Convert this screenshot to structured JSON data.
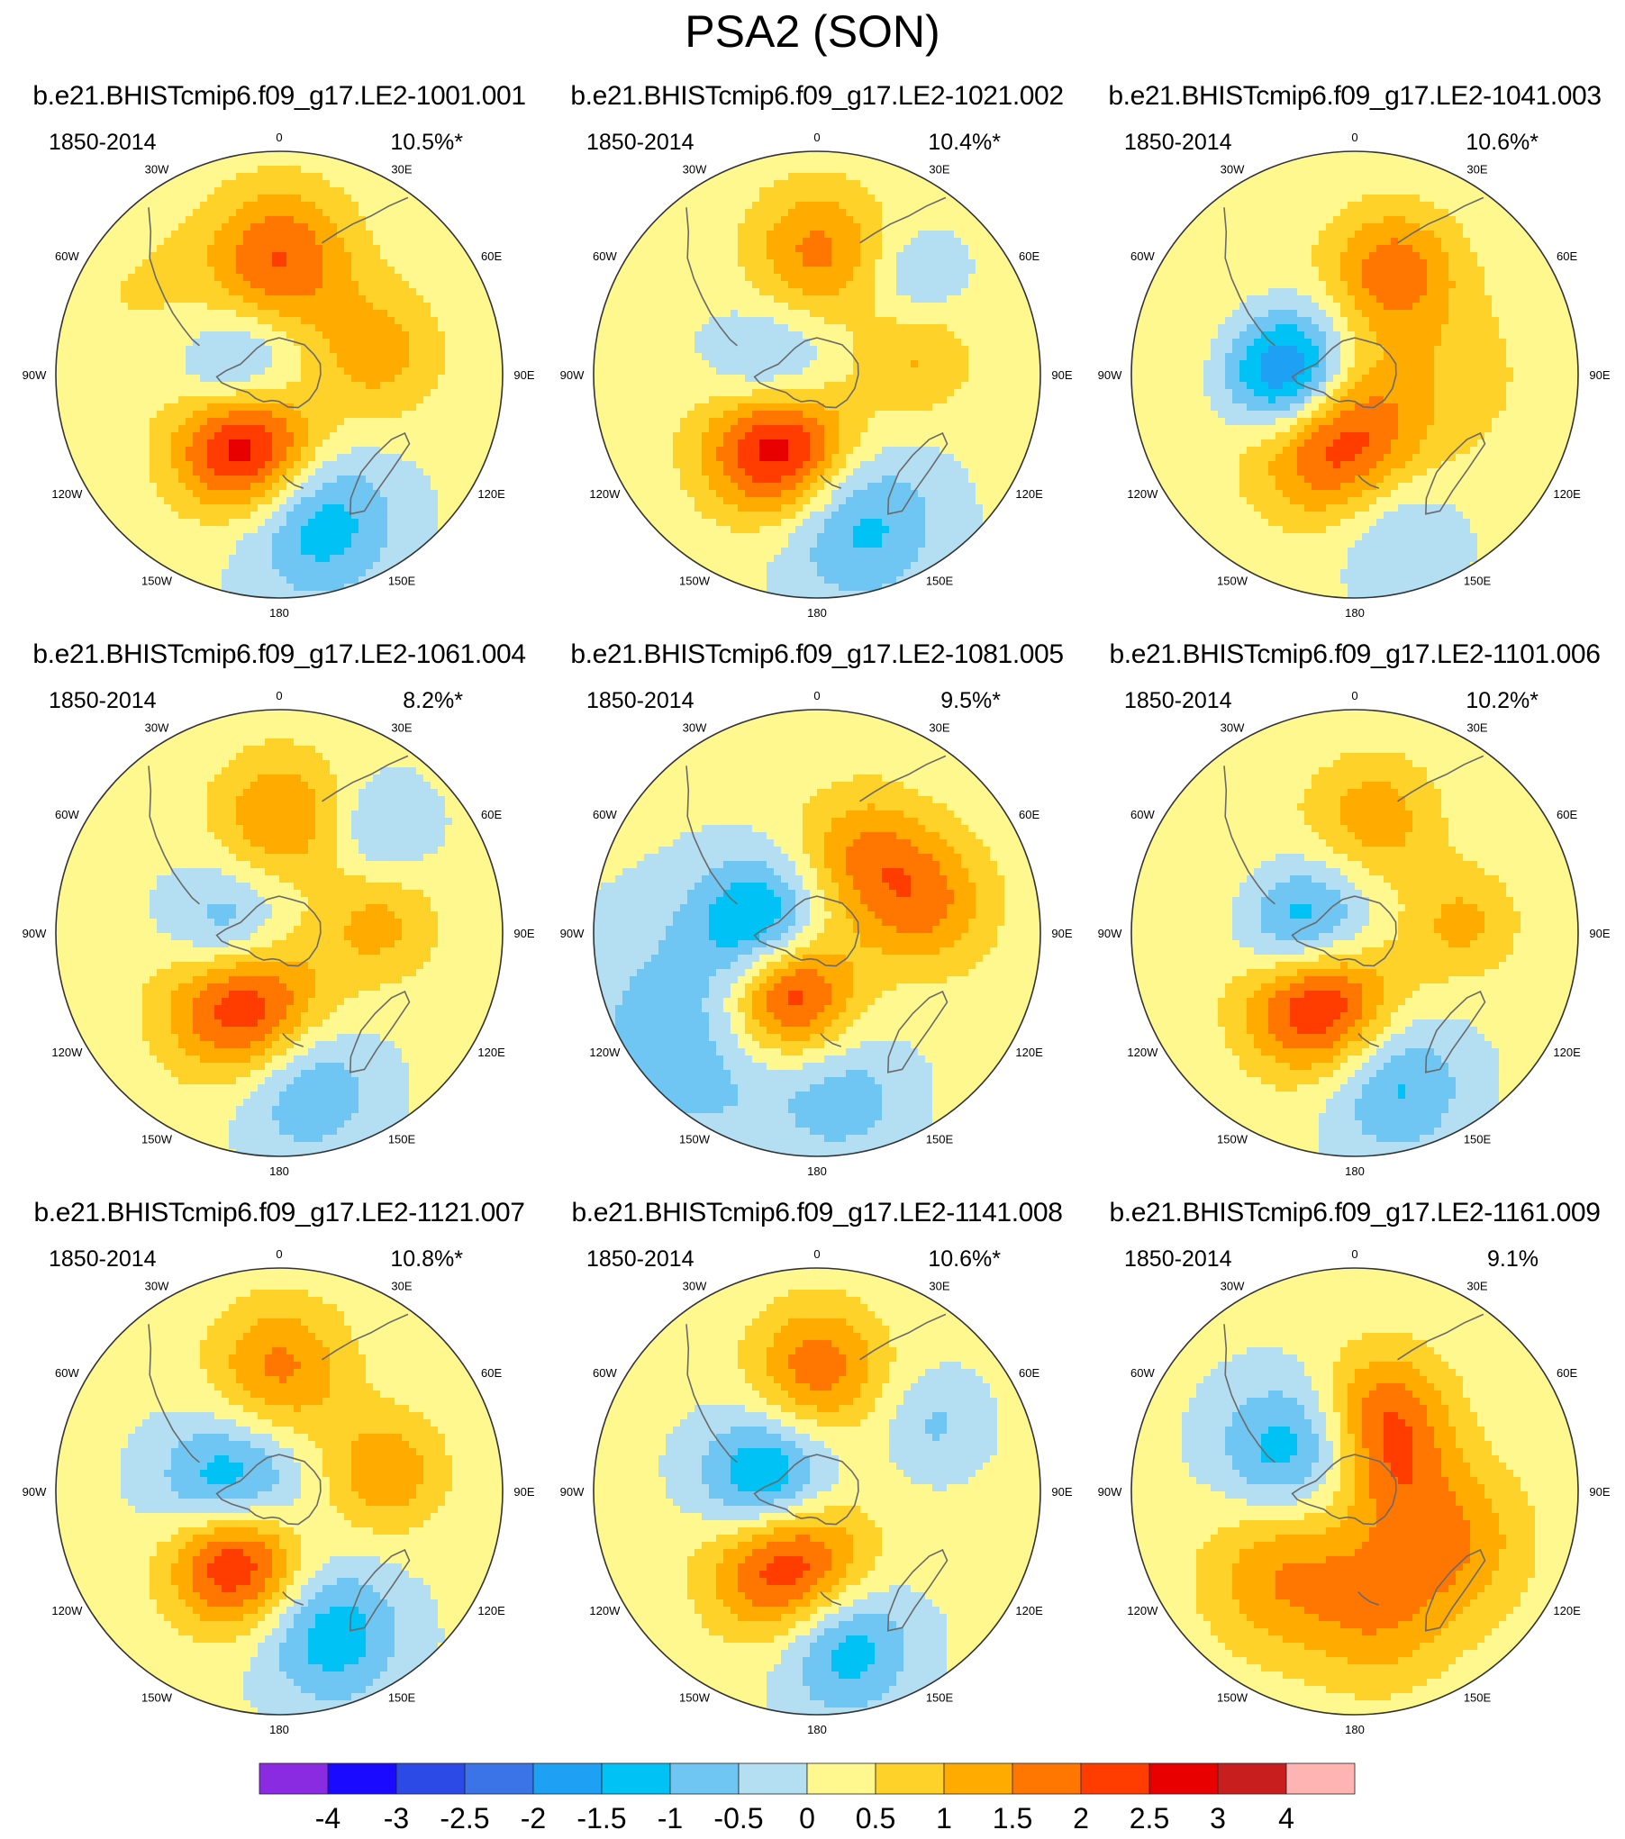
{
  "figure": {
    "title": "PSA2 (SON)"
  },
  "period_label": "1850-2014",
  "meridian_labels": [
    "0",
    "30E",
    "60E",
    "90E",
    "120E",
    "150E",
    "180",
    "150W",
    "120W",
    "90W",
    "60W",
    "30W"
  ],
  "panels": [
    {
      "title": "b.e21.BHISTcmip6.f09_g17.LE2-1001.001",
      "percent": "10.5%*",
      "blobs": [
        {
          "lon": 0,
          "colat": 0.52,
          "amp": 1.9,
          "r": 0.23
        },
        {
          "lon": 262,
          "colat": 0.18,
          "amp": -1.8,
          "r": 0.2
        },
        {
          "lon": 208,
          "colat": 0.33,
          "amp": 3.3,
          "r": 0.22
        },
        {
          "lon": 78,
          "colat": 0.45,
          "amp": 1.1,
          "r": 0.21
        },
        {
          "lon": 165,
          "colat": 0.68,
          "amp": -1.5,
          "r": 0.24
        },
        {
          "lon": 300,
          "colat": 0.7,
          "amp": 0.4,
          "r": 0.25
        }
      ]
    },
    {
      "title": "b.e21.BHISTcmip6.f09_g17.LE2-1021.002",
      "percent": "10.4%*",
      "blobs": [
        {
          "lon": 0,
          "colat": 0.55,
          "amp": 1.5,
          "r": 0.22
        },
        {
          "lon": 265,
          "colat": 0.2,
          "amp": -1.6,
          "r": 0.2
        },
        {
          "lon": 210,
          "colat": 0.35,
          "amp": 3.2,
          "r": 0.23
        },
        {
          "lon": 82,
          "colat": 0.45,
          "amp": 0.9,
          "r": 0.18
        },
        {
          "lon": 165,
          "colat": 0.68,
          "amp": -1.4,
          "r": 0.25
        },
        {
          "lon": 45,
          "colat": 0.62,
          "amp": -0.7,
          "r": 0.15
        }
      ]
    },
    {
      "title": "b.e21.BHISTcmip6.f09_g17.LE2-1041.003",
      "percent": "10.6%*",
      "blobs": [
        {
          "lon": 20,
          "colat": 0.5,
          "amp": 1.6,
          "r": 0.2
        },
        {
          "lon": 270,
          "colat": 0.3,
          "amp": -3.0,
          "r": 0.2
        },
        {
          "lon": 200,
          "colat": 0.3,
          "amp": 2.4,
          "r": 0.25
        },
        {
          "lon": 165,
          "colat": 0.72,
          "amp": -0.8,
          "r": 0.2
        },
        {
          "lon": 90,
          "colat": 0.4,
          "amp": 0.6,
          "r": 0.3
        },
        {
          "lon": 290,
          "colat": 0.7,
          "amp": 0.4,
          "r": 0.35
        }
      ]
    },
    {
      "title": "b.e21.BHISTcmip6.f09_g17.LE2-1061.004",
      "percent": "8.2%*",
      "blobs": [
        {
          "lon": 0,
          "colat": 0.52,
          "amp": 1.4,
          "r": 0.21
        },
        {
          "lon": 265,
          "colat": 0.22,
          "amp": -1.8,
          "r": 0.2
        },
        {
          "lon": 210,
          "colat": 0.33,
          "amp": 2.8,
          "r": 0.24
        },
        {
          "lon": 85,
          "colat": 0.45,
          "amp": 1.0,
          "r": 0.19
        },
        {
          "lon": 170,
          "colat": 0.7,
          "amp": -1.2,
          "r": 0.22
        },
        {
          "lon": 45,
          "colat": 0.65,
          "amp": -0.8,
          "r": 0.16
        }
      ]
    },
    {
      "title": "b.e21.BHISTcmip6.f09_g17.LE2-1081.005",
      "percent": "9.5%*",
      "blobs": [
        {
          "lon": 30,
          "colat": 0.4,
          "amp": 1.3,
          "r": 0.22
        },
        {
          "lon": 75,
          "colat": 0.5,
          "amp": 1.4,
          "r": 0.22
        },
        {
          "lon": 280,
          "colat": 0.25,
          "amp": -1.8,
          "r": 0.2
        },
        {
          "lon": 205,
          "colat": 0.3,
          "amp": 2.8,
          "r": 0.2
        },
        {
          "lon": 230,
          "colat": 0.7,
          "amp": -1.0,
          "r": 0.38
        },
        {
          "lon": 170,
          "colat": 0.75,
          "amp": -0.8,
          "r": 0.2
        }
      ]
    },
    {
      "title": "b.e21.BHISTcmip6.f09_g17.LE2-1101.006",
      "percent": "10.2%*",
      "blobs": [
        {
          "lon": 10,
          "colat": 0.52,
          "amp": 1.2,
          "r": 0.2
        },
        {
          "lon": 270,
          "colat": 0.22,
          "amp": -2.3,
          "r": 0.21
        },
        {
          "lon": 210,
          "colat": 0.33,
          "amp": 3.0,
          "r": 0.23
        },
        {
          "lon": 85,
          "colat": 0.48,
          "amp": 1.0,
          "r": 0.18
        },
        {
          "lon": 165,
          "colat": 0.7,
          "amp": -1.3,
          "r": 0.22
        },
        {
          "lon": 300,
          "colat": 0.7,
          "amp": 0.4,
          "r": 0.3
        }
      ]
    },
    {
      "title": "b.e21.BHISTcmip6.f09_g17.LE2-1121.007",
      "percent": "10.8%*",
      "blobs": [
        {
          "lon": 0,
          "colat": 0.55,
          "amp": 1.5,
          "r": 0.22
        },
        {
          "lon": 265,
          "colat": 0.22,
          "amp": -2.2,
          "r": 0.22
        },
        {
          "lon": 215,
          "colat": 0.35,
          "amp": 3.1,
          "r": 0.21
        },
        {
          "lon": 80,
          "colat": 0.48,
          "amp": 1.3,
          "r": 0.19
        },
        {
          "lon": 160,
          "colat": 0.68,
          "amp": -1.5,
          "r": 0.22
        }
      ]
    },
    {
      "title": "b.e21.BHISTcmip6.f09_g17.LE2-1141.008",
      "percent": "10.6%*",
      "blobs": [
        {
          "lon": 0,
          "colat": 0.55,
          "amp": 1.7,
          "r": 0.21
        },
        {
          "lon": 275,
          "colat": 0.22,
          "amp": -2.4,
          "r": 0.21
        },
        {
          "lon": 205,
          "colat": 0.33,
          "amp": 2.8,
          "r": 0.24
        },
        {
          "lon": 170,
          "colat": 0.7,
          "amp": -1.6,
          "r": 0.21
        },
        {
          "lon": 60,
          "colat": 0.6,
          "amp": -0.7,
          "r": 0.16
        }
      ]
    },
    {
      "title": "b.e21.BHISTcmip6.f09_g17.LE2-1161.009",
      "percent": "9.1%",
      "blobs": [
        {
          "lon": 20,
          "colat": 0.4,
          "amp": 1.6,
          "r": 0.2
        },
        {
          "lon": 300,
          "colat": 0.35,
          "amp": -1.5,
          "r": 0.22
        },
        {
          "lon": 120,
          "colat": 0.45,
          "amp": 1.5,
          "r": 0.26
        },
        {
          "lon": 220,
          "colat": 0.48,
          "amp": 1.4,
          "r": 0.26
        },
        {
          "lon": 60,
          "colat": 0.2,
          "amp": 0.9,
          "r": 0.18
        },
        {
          "lon": 170,
          "colat": 0.62,
          "amp": 0.9,
          "r": 0.22
        }
      ]
    }
  ],
  "colorbar": {
    "levels": [
      "-4",
      "-3",
      "-2.5",
      "-2",
      "-1.5",
      "-1",
      "-0.5",
      "0",
      "0.5",
      "1",
      "1.5",
      "2",
      "2.5",
      "3",
      "4"
    ],
    "colors": [
      "#8a2be2",
      "#1a0aff",
      "#2c4ae6",
      "#3b74e6",
      "#1ea0f5",
      "#00c2f5",
      "#70c6f2",
      "#b4def2",
      "#fff88e",
      "#ffd22a",
      "#ffab00",
      "#ff7700",
      "#ff3d00",
      "#e80000",
      "#c81e1e",
      "#ffb4b4"
    ]
  },
  "style": {
    "coastline_color": "#6a6a6a",
    "frame_color": "#333333"
  }
}
